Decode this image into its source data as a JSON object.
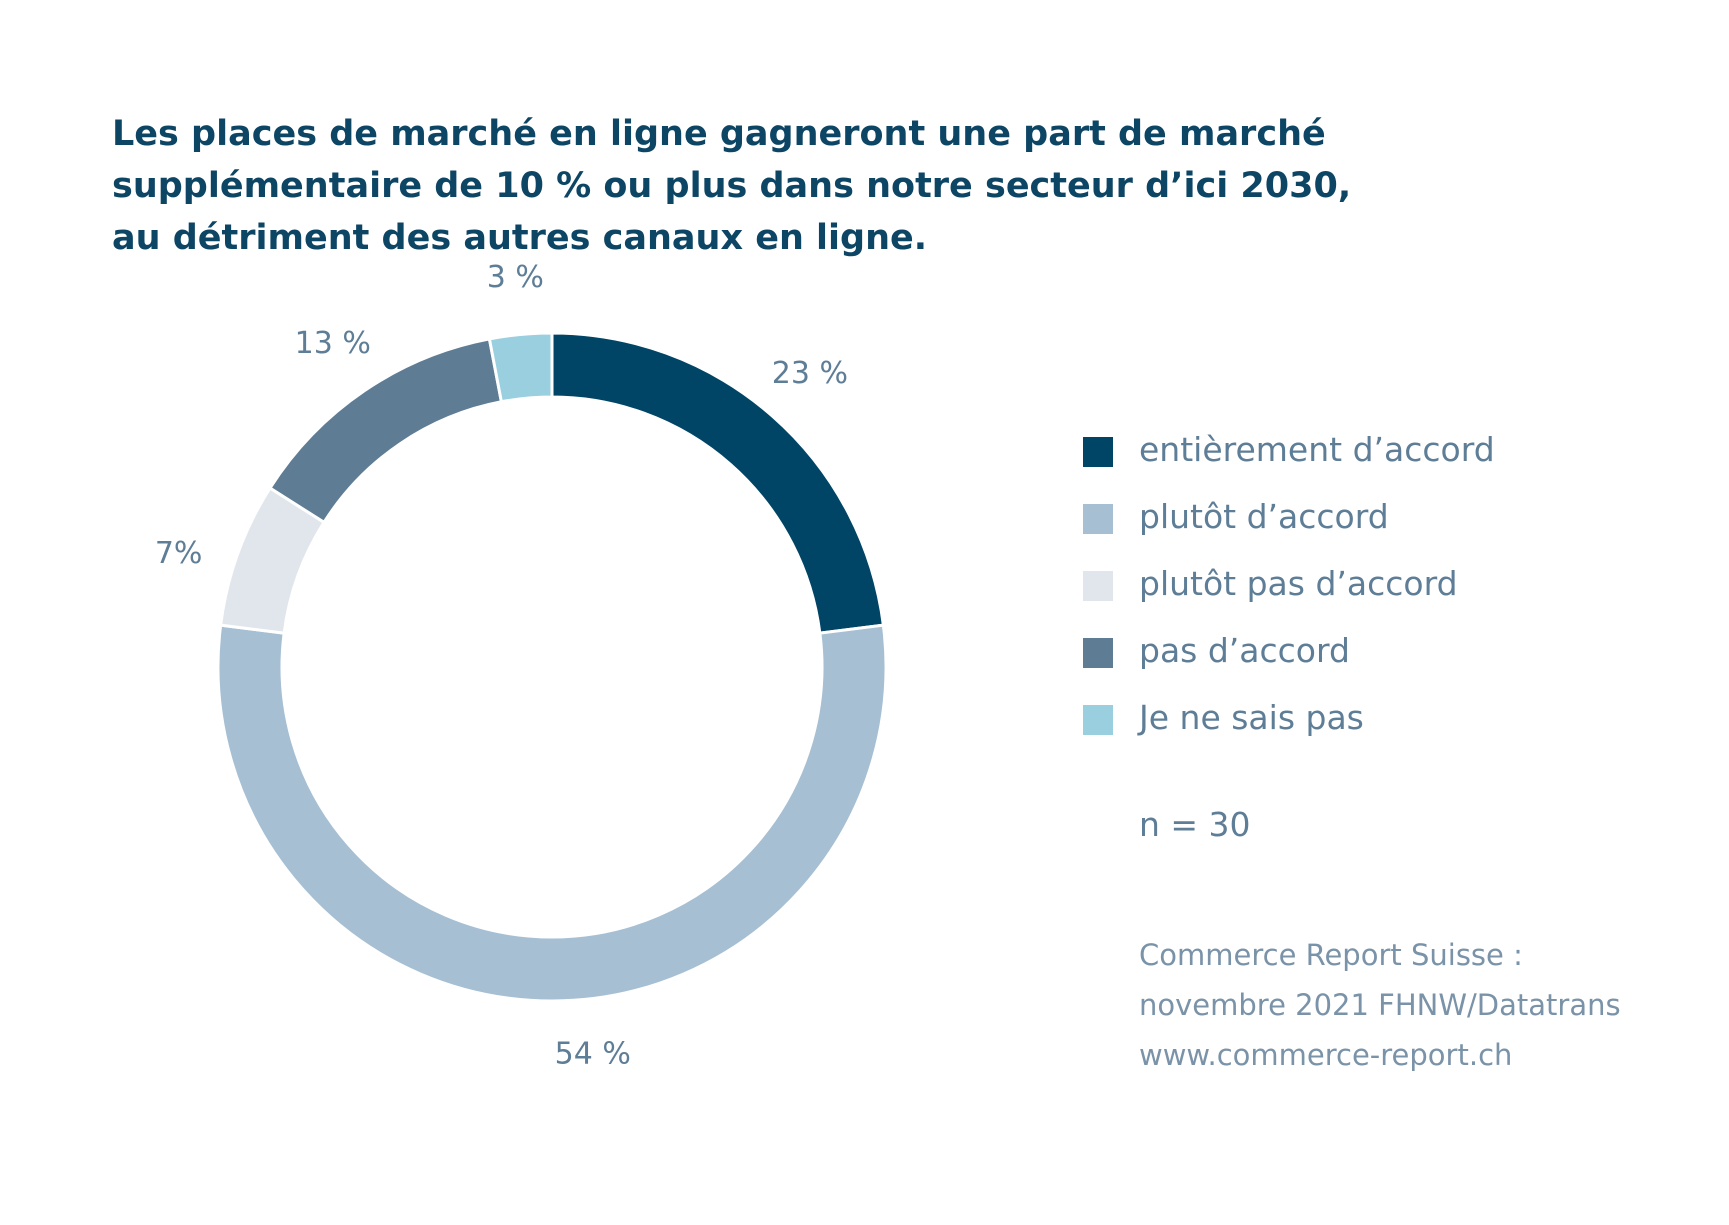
{
  "chart_data": {
    "type": "pie",
    "variant": "donut",
    "title_lines": [
      "Les places de marché en ligne gagneront une part de marché",
      "supplémentaire de 10 % ou plus dans notre secteur d’ici 2030,",
      "au détriment des autres canaux en ligne."
    ],
    "slices": [
      {
        "name": "entièrement d’accord",
        "value": 23,
        "label": "23 %",
        "color": "#004466"
      },
      {
        "name": "plutôt d’accord",
        "value": 54,
        "label": "54 %",
        "color": "#a6bfd3"
      },
      {
        "name": "plutôt pas d’accord",
        "value": 7,
        "label": "7%",
        "color": "#e1e6ed"
      },
      {
        "name": "pas d’accord",
        "value": 13,
        "label": "13 %",
        "color": "#5f7c95"
      },
      {
        "name": "Je ne sais pas",
        "value": 3,
        "label": "3 %",
        "color": "#99cfdf"
      }
    ],
    "legend_position": "right",
    "sample_size": "n = 30"
  },
  "source_lines": [
    "Commerce Report Suisse :",
    "novembre 2021 FHNW/Datatrans",
    "www.commerce-report.ch"
  ],
  "colors": {
    "title": "#0d4565",
    "text": "#5e7d96",
    "source": "#7a93a8"
  }
}
